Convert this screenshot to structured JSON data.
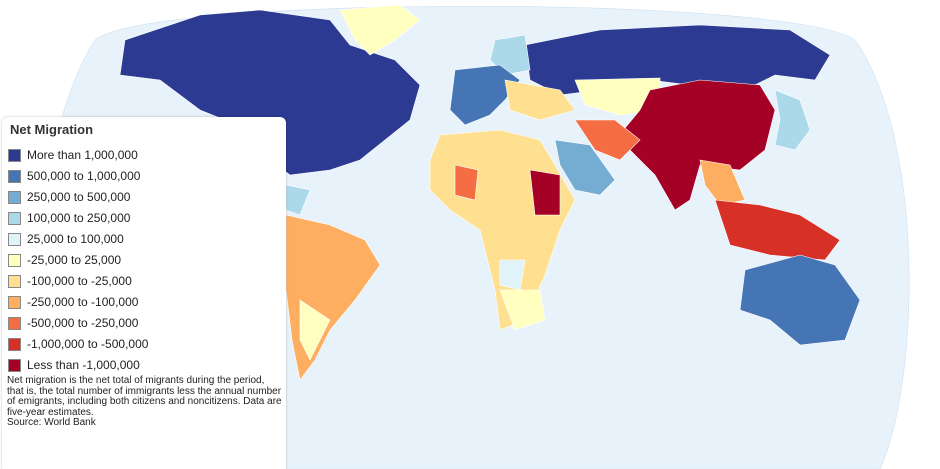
{
  "legend": {
    "title": "Net Migration",
    "items": [
      {
        "label": "More than 1,000,000",
        "color": "#2d3a92"
      },
      {
        "label": "500,000 to 1,000,000",
        "color": "#4575b4"
      },
      {
        "label": "250,000 to 500,000",
        "color": "#74add1"
      },
      {
        "label": "100,000 to 250,000",
        "color": "#abd9e9"
      },
      {
        "label": "25,000 to 100,000",
        "color": "#e0f3f8"
      },
      {
        "label": "-25,000 to 25,000",
        "color": "#ffffbf"
      },
      {
        "label": "-100,000 to -25,000",
        "color": "#fee090"
      },
      {
        "label": "-250,000 to -100,000",
        "color": "#fdae61"
      },
      {
        "label": "-500,000 to -250,000",
        "color": "#f46d43"
      },
      {
        "label": "-1,000,000 to -500,000",
        "color": "#d73027"
      },
      {
        "label": "Less than -1,000,000",
        "color": "#a50026"
      }
    ]
  },
  "note": {
    "text": "Net migration is the net total of migrants during the period, that is, the total number of immigrants less the annual number of emigrants, including both citizens and noncitizens. Data are five-year estimates.",
    "source": "Source: World Bank"
  }
}
